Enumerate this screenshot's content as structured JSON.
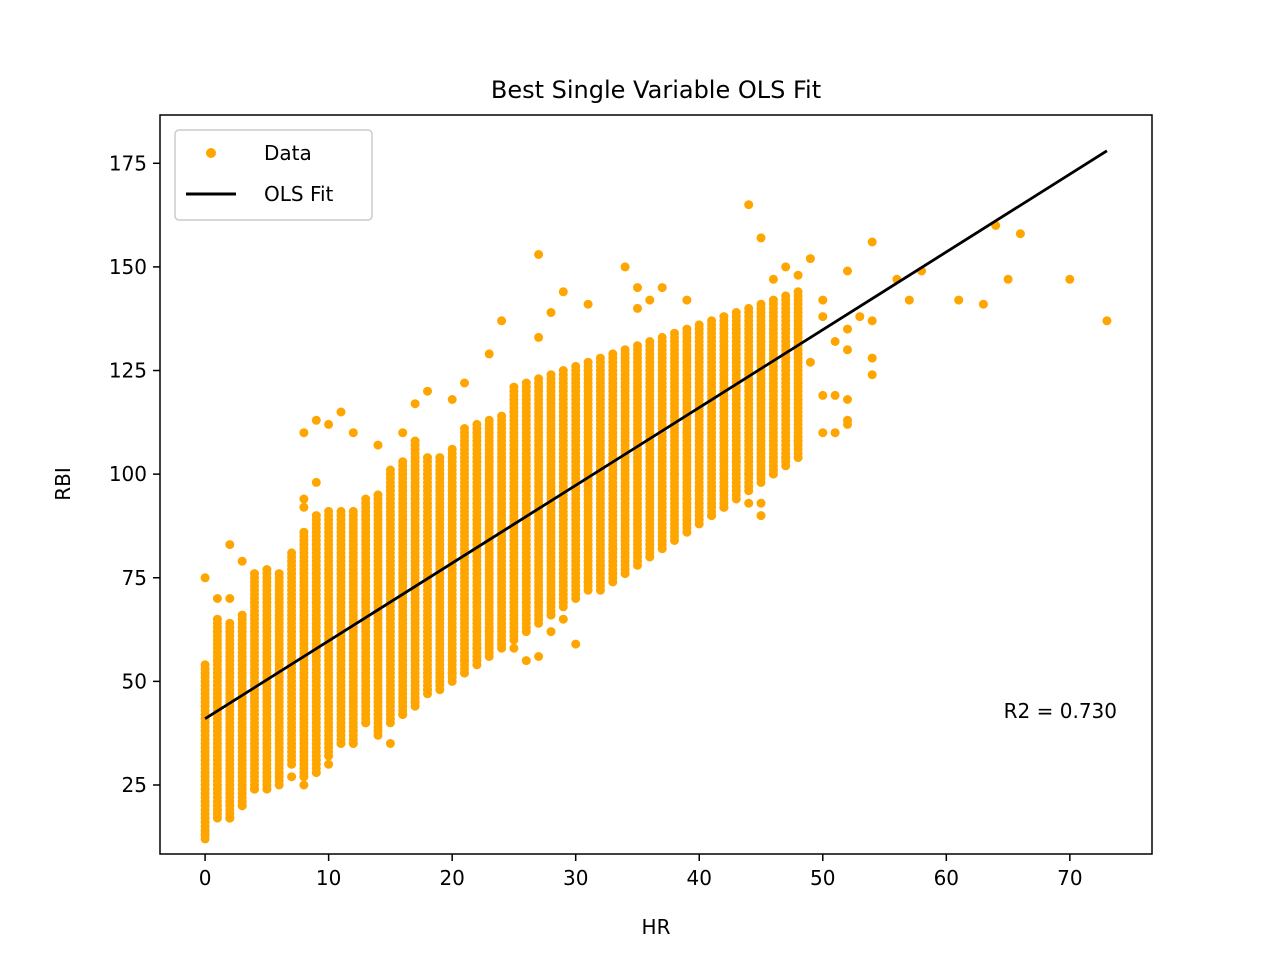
{
  "chart_data": {
    "type": "scatter",
    "title": "Best Single Variable OLS Fit",
    "xlabel": "HR",
    "ylabel": "RBI",
    "xlim": [
      -3.65,
      76.65
    ],
    "ylim": [
      8.35,
      186.65
    ],
    "xticks": [
      0,
      10,
      20,
      30,
      40,
      50,
      60,
      70
    ],
    "yticks": [
      25,
      50,
      75,
      100,
      125,
      150,
      175
    ],
    "grid": false,
    "legend_position": "top-left",
    "legend": [
      {
        "label": "Data",
        "marker": "dot"
      },
      {
        "label": "OLS Fit",
        "marker": "line"
      }
    ],
    "annotation": "R2 = 0.730",
    "colors": {
      "data": "#ffa500",
      "fit": "#000000"
    },
    "series": [
      {
        "name": "Data",
        "kind": "points",
        "color": "#ffa500",
        "ranges": [
          {
            "x": 0,
            "ymin": 12,
            "ymax": 54
          },
          {
            "x": 1,
            "ymin": 17,
            "ymax": 65
          },
          {
            "x": 2,
            "ymin": 17,
            "ymax": 64
          },
          {
            "x": 3,
            "ymin": 20,
            "ymax": 66
          },
          {
            "x": 4,
            "ymin": 24,
            "ymax": 76
          },
          {
            "x": 5,
            "ymin": 25,
            "ymax": 77
          },
          {
            "x": 6,
            "ymin": 26,
            "ymax": 76
          },
          {
            "x": 7,
            "ymin": 30,
            "ymax": 81
          },
          {
            "x": 8,
            "ymin": 27,
            "ymax": 86
          },
          {
            "x": 9,
            "ymin": 29,
            "ymax": 90
          },
          {
            "x": 10,
            "ymin": 32,
            "ymax": 91
          },
          {
            "x": 11,
            "ymin": 35,
            "ymax": 91
          },
          {
            "x": 12,
            "ymin": 35,
            "ymax": 91
          },
          {
            "x": 13,
            "ymin": 40,
            "ymax": 94
          },
          {
            "x": 14,
            "ymin": 38,
            "ymax": 95
          },
          {
            "x": 15,
            "ymin": 40,
            "ymax": 101
          },
          {
            "x": 16,
            "ymin": 42,
            "ymax": 103
          },
          {
            "x": 17,
            "ymin": 44,
            "ymax": 108
          },
          {
            "x": 18,
            "ymin": 47,
            "ymax": 104
          },
          {
            "x": 19,
            "ymin": 48,
            "ymax": 104
          },
          {
            "x": 20,
            "ymin": 50,
            "ymax": 106
          },
          {
            "x": 21,
            "ymin": 52,
            "ymax": 111
          },
          {
            "x": 22,
            "ymin": 54,
            "ymax": 112
          },
          {
            "x": 23,
            "ymin": 56,
            "ymax": 113
          },
          {
            "x": 24,
            "ymin": 58,
            "ymax": 114
          },
          {
            "x": 25,
            "ymin": 60,
            "ymax": 121
          },
          {
            "x": 26,
            "ymin": 62,
            "ymax": 122
          },
          {
            "x": 27,
            "ymin": 64,
            "ymax": 123
          },
          {
            "x": 28,
            "ymin": 66,
            "ymax": 124
          },
          {
            "x": 29,
            "ymin": 68,
            "ymax": 125
          },
          {
            "x": 30,
            "ymin": 70,
            "ymax": 126
          },
          {
            "x": 31,
            "ymin": 72,
            "ymax": 127
          },
          {
            "x": 32,
            "ymin": 72,
            "ymax": 128
          },
          {
            "x": 33,
            "ymin": 74,
            "ymax": 129
          },
          {
            "x": 34,
            "ymin": 76,
            "ymax": 130
          },
          {
            "x": 35,
            "ymin": 78,
            "ymax": 131
          },
          {
            "x": 36,
            "ymin": 80,
            "ymax": 132
          },
          {
            "x": 37,
            "ymin": 82,
            "ymax": 133
          },
          {
            "x": 38,
            "ymin": 84,
            "ymax": 134
          },
          {
            "x": 39,
            "ymin": 86,
            "ymax": 135
          },
          {
            "x": 40,
            "ymin": 88,
            "ymax": 136
          },
          {
            "x": 41,
            "ymin": 90,
            "ymax": 137
          },
          {
            "x": 42,
            "ymin": 92,
            "ymax": 138
          },
          {
            "x": 43,
            "ymin": 94,
            "ymax": 139
          },
          {
            "x": 44,
            "ymin": 96,
            "ymax": 140
          },
          {
            "x": 45,
            "ymin": 98,
            "ymax": 141
          },
          {
            "x": 46,
            "ymin": 100,
            "ymax": 142
          },
          {
            "x": 47,
            "ymin": 102,
            "ymax": 143
          },
          {
            "x": 48,
            "ymin": 104,
            "ymax": 144
          }
        ],
        "points": [
          [
            0,
            75
          ],
          [
            1,
            70
          ],
          [
            2,
            70
          ],
          [
            2,
            83
          ],
          [
            3,
            79
          ],
          [
            8,
            92
          ],
          [
            8,
            94
          ],
          [
            9,
            98
          ],
          [
            8,
            110
          ],
          [
            9,
            113
          ],
          [
            10,
            112
          ],
          [
            11,
            115
          ],
          [
            12,
            110
          ],
          [
            14,
            107
          ],
          [
            16,
            110
          ],
          [
            17,
            117
          ],
          [
            18,
            120
          ],
          [
            20,
            118
          ],
          [
            21,
            122
          ],
          [
            24,
            137
          ],
          [
            23,
            129
          ],
          [
            27,
            133
          ],
          [
            27,
            153
          ],
          [
            28,
            139
          ],
          [
            29,
            144
          ],
          [
            31,
            141
          ],
          [
            34,
            150
          ],
          [
            35,
            145
          ],
          [
            35,
            140
          ],
          [
            36,
            142
          ],
          [
            37,
            145
          ],
          [
            39,
            142
          ],
          [
            44,
            165
          ],
          [
            45,
            157
          ],
          [
            46,
            147
          ],
          [
            49,
            152
          ],
          [
            50,
            138
          ],
          [
            52,
            149
          ],
          [
            54,
            156
          ],
          [
            56,
            147
          ],
          [
            57,
            142
          ],
          [
            58,
            149
          ],
          [
            61,
            142
          ],
          [
            63,
            141
          ],
          [
            64,
            160
          ],
          [
            65,
            147
          ],
          [
            66,
            158
          ],
          [
            70,
            147
          ],
          [
            73,
            137
          ],
          [
            47,
            150
          ],
          [
            48,
            148
          ],
          [
            50,
            142
          ],
          [
            51,
            132
          ],
          [
            53,
            138
          ],
          [
            54,
            137
          ],
          [
            54,
            128
          ],
          [
            54,
            124
          ],
          [
            52,
            135
          ],
          [
            52,
            130
          ],
          [
            52,
            118
          ],
          [
            52,
            113
          ],
          [
            52,
            112
          ],
          [
            51,
            119
          ],
          [
            51,
            110
          ],
          [
            50,
            119
          ],
          [
            50,
            110
          ],
          [
            49,
            127
          ],
          [
            48,
            108
          ],
          [
            47,
            104
          ],
          [
            46,
            101
          ],
          [
            45,
            93
          ],
          [
            45,
            90
          ],
          [
            44,
            100
          ],
          [
            44,
            93
          ],
          [
            43,
            103
          ],
          [
            42,
            92
          ],
          [
            41,
            90
          ],
          [
            40,
            96
          ],
          [
            39,
            94
          ],
          [
            38,
            100
          ],
          [
            37,
            95
          ],
          [
            36,
            95
          ],
          [
            35,
            88
          ],
          [
            34,
            85
          ],
          [
            33,
            82
          ],
          [
            32,
            78
          ],
          [
            31,
            74
          ],
          [
            30,
            59
          ],
          [
            29,
            65
          ],
          [
            28,
            62
          ],
          [
            27,
            56
          ],
          [
            26,
            55
          ],
          [
            25,
            58
          ],
          [
            24,
            60
          ],
          [
            23,
            62
          ],
          [
            22,
            58
          ],
          [
            21,
            55
          ],
          [
            20,
            52
          ],
          [
            19,
            50
          ],
          [
            18,
            48
          ],
          [
            17,
            45
          ],
          [
            16,
            42
          ],
          [
            15,
            35
          ],
          [
            14,
            37
          ],
          [
            13,
            40
          ],
          [
            12,
            35
          ],
          [
            11,
            35
          ],
          [
            10,
            30
          ],
          [
            9,
            28
          ],
          [
            8,
            25
          ],
          [
            7,
            27
          ],
          [
            6,
            25
          ],
          [
            5,
            24
          ],
          [
            4,
            24
          ],
          [
            3,
            20
          ],
          [
            2,
            17
          ],
          [
            1,
            19
          ]
        ]
      },
      {
        "name": "OLS Fit",
        "kind": "line",
        "color": "#000000",
        "x": [
          0,
          73
        ],
        "y": [
          41,
          178
        ]
      }
    ]
  }
}
